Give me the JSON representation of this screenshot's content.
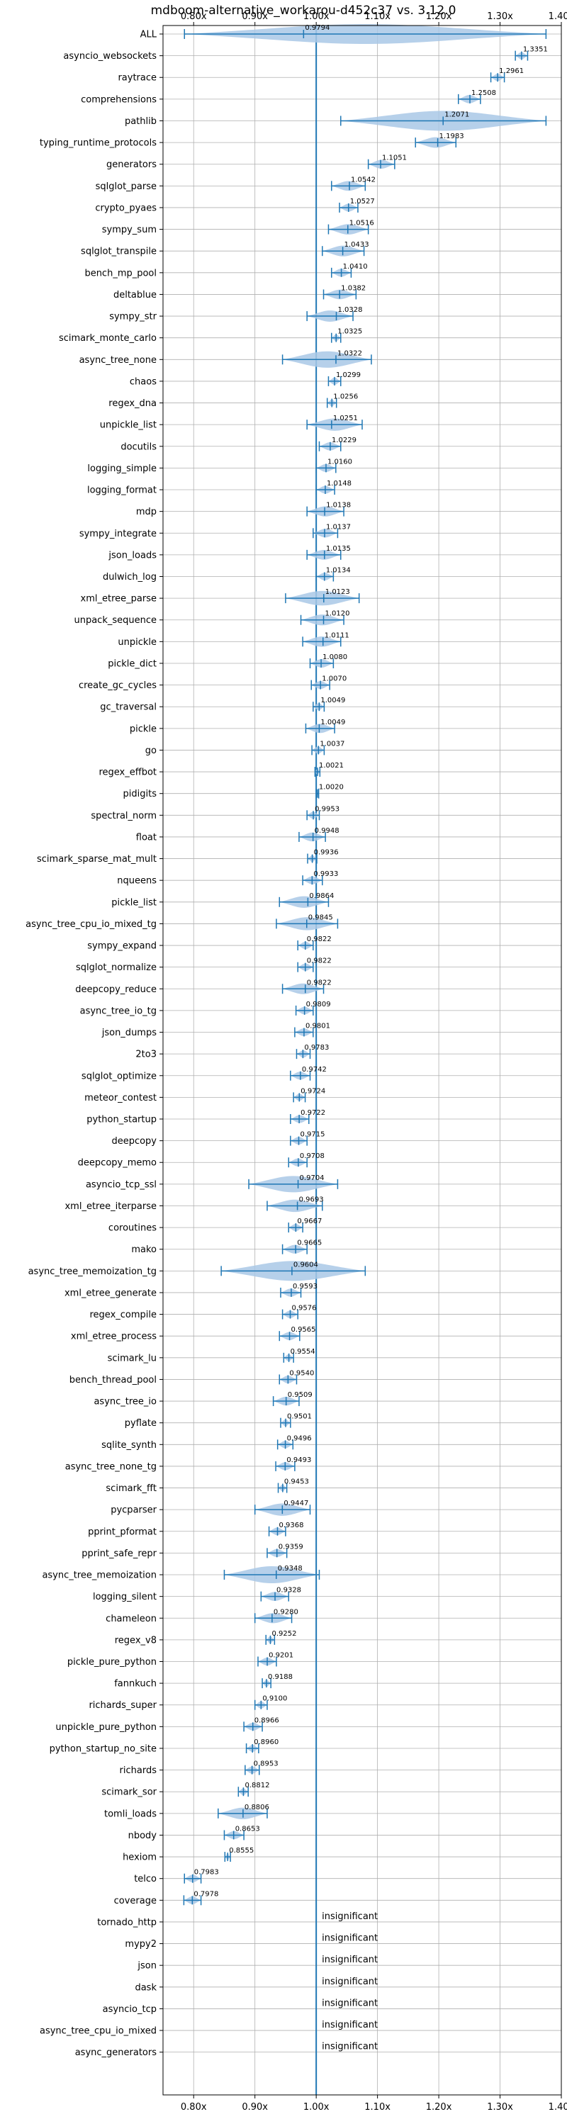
{
  "chart_data": {
    "type": "violin",
    "title": "mdboom-alternative_workarou-d452c37 vs. 3.12.0",
    "xlabel": "",
    "ylabel": "",
    "xlim": [
      0.75,
      1.4
    ],
    "xticks": [
      0.8,
      0.9,
      1.0,
      1.1,
      1.2,
      1.3,
      1.4
    ],
    "xtick_labels": [
      "0.80x",
      "0.90x",
      "1.00x",
      "1.10x",
      "1.20x",
      "1.30x",
      "1.40x"
    ],
    "grid": true,
    "reference_line": 1.0,
    "colors": {
      "violin": "#a9c8e6",
      "line": "#1f77b4",
      "grid": "#b0b0b0"
    },
    "benchmarks": [
      {
        "name": "ALL",
        "value": 0.9794,
        "label": "0.9794",
        "min": 0.785,
        "max": 1.375
      },
      {
        "name": "asyncio_websockets",
        "value": 1.3351,
        "label": "1.3351",
        "min": 1.325,
        "max": 1.345
      },
      {
        "name": "raytrace",
        "value": 1.2961,
        "label": "1.2961",
        "min": 1.285,
        "max": 1.307
      },
      {
        "name": "comprehensions",
        "value": 1.2508,
        "label": "1.2508",
        "min": 1.232,
        "max": 1.268
      },
      {
        "name": "pathlib",
        "value": 1.2071,
        "label": "1.2071",
        "min": 1.04,
        "max": 1.375
      },
      {
        "name": "typing_runtime_protocols",
        "value": 1.1983,
        "label": "1.1983",
        "min": 1.162,
        "max": 1.228
      },
      {
        "name": "generators",
        "value": 1.1051,
        "label": "1.1051",
        "min": 1.085,
        "max": 1.128
      },
      {
        "name": "sqlglot_parse",
        "value": 1.0542,
        "label": "1.0542",
        "min": 1.025,
        "max": 1.08
      },
      {
        "name": "crypto_pyaes",
        "value": 1.0527,
        "label": "1.0527",
        "min": 1.038,
        "max": 1.068
      },
      {
        "name": "sympy_sum",
        "value": 1.0516,
        "label": "1.0516",
        "min": 1.02,
        "max": 1.085
      },
      {
        "name": "sqlglot_transpile",
        "value": 1.0433,
        "label": "1.0433",
        "min": 1.01,
        "max": 1.078
      },
      {
        "name": "bench_mp_pool",
        "value": 1.041,
        "label": "1.0410",
        "min": 1.025,
        "max": 1.057
      },
      {
        "name": "deltablue",
        "value": 1.0382,
        "label": "1.0382",
        "min": 1.012,
        "max": 1.065
      },
      {
        "name": "sympy_str",
        "value": 1.0328,
        "label": "1.0328",
        "min": 0.985,
        "max": 1.06
      },
      {
        "name": "scimark_monte_carlo",
        "value": 1.0325,
        "label": "1.0325",
        "min": 1.025,
        "max": 1.04
      },
      {
        "name": "async_tree_none",
        "value": 1.0322,
        "label": "1.0322",
        "min": 0.945,
        "max": 1.09
      },
      {
        "name": "chaos",
        "value": 1.0299,
        "label": "1.0299",
        "min": 1.02,
        "max": 1.04
      },
      {
        "name": "regex_dna",
        "value": 1.0256,
        "label": "1.0256",
        "min": 1.018,
        "max": 1.033
      },
      {
        "name": "unpickle_list",
        "value": 1.0251,
        "label": "1.0251",
        "min": 0.985,
        "max": 1.075
      },
      {
        "name": "docutils",
        "value": 1.0229,
        "label": "1.0229",
        "min": 1.005,
        "max": 1.04
      },
      {
        "name": "logging_simple",
        "value": 1.016,
        "label": "1.0160",
        "min": 1.0,
        "max": 1.032
      },
      {
        "name": "logging_format",
        "value": 1.0148,
        "label": "1.0148",
        "min": 1.0,
        "max": 1.03
      },
      {
        "name": "mdp",
        "value": 1.0138,
        "label": "1.0138",
        "min": 0.985,
        "max": 1.045
      },
      {
        "name": "sympy_integrate",
        "value": 1.0137,
        "label": "1.0137",
        "min": 0.995,
        "max": 1.035
      },
      {
        "name": "json_loads",
        "value": 1.0135,
        "label": "1.0135",
        "min": 0.985,
        "max": 1.04
      },
      {
        "name": "dulwich_log",
        "value": 1.0134,
        "label": "1.0134",
        "min": 1.0,
        "max": 1.028
      },
      {
        "name": "xml_etree_parse",
        "value": 1.0123,
        "label": "1.0123",
        "min": 0.95,
        "max": 1.07
      },
      {
        "name": "unpack_sequence",
        "value": 1.012,
        "label": "1.0120",
        "min": 0.975,
        "max": 1.045
      },
      {
        "name": "unpickle",
        "value": 1.0111,
        "label": "1.0111",
        "min": 0.978,
        "max": 1.04
      },
      {
        "name": "pickle_dict",
        "value": 1.008,
        "label": "1.0080",
        "min": 0.99,
        "max": 1.028
      },
      {
        "name": "create_gc_cycles",
        "value": 1.007,
        "label": "1.0070",
        "min": 0.992,
        "max": 1.022
      },
      {
        "name": "gc_traversal",
        "value": 1.0049,
        "label": "1.0049",
        "min": 0.995,
        "max": 1.013
      },
      {
        "name": "pickle",
        "value": 1.0049,
        "label": "1.0049",
        "min": 0.983,
        "max": 1.03
      },
      {
        "name": "go",
        "value": 1.0037,
        "label": "1.0037",
        "min": 0.993,
        "max": 1.013
      },
      {
        "name": "regex_effbot",
        "value": 1.0021,
        "label": "1.0021",
        "min": 0.998,
        "max": 1.006
      },
      {
        "name": "pidigits",
        "value": 1.002,
        "label": "1.0020",
        "min": 1.0,
        "max": 1.004
      },
      {
        "name": "spectral_norm",
        "value": 0.9953,
        "label": "0.9953",
        "min": 0.985,
        "max": 1.005
      },
      {
        "name": "float",
        "value": 0.9948,
        "label": "0.9948",
        "min": 0.972,
        "max": 1.015
      },
      {
        "name": "scimark_sparse_mat_mult",
        "value": 0.9936,
        "label": "0.9936",
        "min": 0.986,
        "max": 1.001
      },
      {
        "name": "nqueens",
        "value": 0.9933,
        "label": "0.9933",
        "min": 0.978,
        "max": 1.01
      },
      {
        "name": "pickle_list",
        "value": 0.9864,
        "label": "0.9864",
        "min": 0.94,
        "max": 1.02
      },
      {
        "name": "async_tree_cpu_io_mixed_tg",
        "value": 0.9845,
        "label": "0.9845",
        "min": 0.935,
        "max": 1.035
      },
      {
        "name": "sympy_expand",
        "value": 0.9822,
        "label": "0.9822",
        "min": 0.97,
        "max": 0.995
      },
      {
        "name": "sqlglot_normalize",
        "value": 0.9822,
        "label": "0.9822",
        "min": 0.97,
        "max": 0.995
      },
      {
        "name": "deepcopy_reduce",
        "value": 0.9822,
        "label": "0.9822",
        "min": 0.945,
        "max": 1.012
      },
      {
        "name": "async_tree_io_tg",
        "value": 0.9809,
        "label": "0.9809",
        "min": 0.967,
        "max": 0.995
      },
      {
        "name": "json_dumps",
        "value": 0.9801,
        "label": "0.9801",
        "min": 0.965,
        "max": 0.995
      },
      {
        "name": "2to3",
        "value": 0.9783,
        "label": "0.9783",
        "min": 0.968,
        "max": 0.99
      },
      {
        "name": "sqlglot_optimize",
        "value": 0.9742,
        "label": "0.9742",
        "min": 0.958,
        "max": 0.99
      },
      {
        "name": "meteor_contest",
        "value": 0.9724,
        "label": "0.9724",
        "min": 0.963,
        "max": 0.982
      },
      {
        "name": "python_startup",
        "value": 0.9722,
        "label": "0.9722",
        "min": 0.958,
        "max": 0.988
      },
      {
        "name": "deepcopy",
        "value": 0.9715,
        "label": "0.9715",
        "min": 0.958,
        "max": 0.985
      },
      {
        "name": "deepcopy_memo",
        "value": 0.9708,
        "label": "0.9708",
        "min": 0.955,
        "max": 0.985
      },
      {
        "name": "asyncio_tcp_ssl",
        "value": 0.9704,
        "label": "0.9704",
        "min": 0.89,
        "max": 1.035
      },
      {
        "name": "xml_etree_iterparse",
        "value": 0.9693,
        "label": "0.9693",
        "min": 0.92,
        "max": 1.01
      },
      {
        "name": "coroutines",
        "value": 0.9667,
        "label": "0.9667",
        "min": 0.955,
        "max": 0.978
      },
      {
        "name": "mako",
        "value": 0.9665,
        "label": "0.9665",
        "min": 0.945,
        "max": 0.985
      },
      {
        "name": "async_tree_memoization_tg",
        "value": 0.9604,
        "label": "0.9604",
        "min": 0.845,
        "max": 1.08
      },
      {
        "name": "xml_etree_generate",
        "value": 0.9593,
        "label": "0.9593",
        "min": 0.942,
        "max": 0.975
      },
      {
        "name": "regex_compile",
        "value": 0.9576,
        "label": "0.9576",
        "min": 0.945,
        "max": 0.97
      },
      {
        "name": "xml_etree_process",
        "value": 0.9565,
        "label": "0.9565",
        "min": 0.94,
        "max": 0.973
      },
      {
        "name": "scimark_lu",
        "value": 0.9554,
        "label": "0.9554",
        "min": 0.947,
        "max": 0.963
      },
      {
        "name": "bench_thread_pool",
        "value": 0.954,
        "label": "0.9540",
        "min": 0.94,
        "max": 0.968
      },
      {
        "name": "async_tree_io",
        "value": 0.9509,
        "label": "0.9509",
        "min": 0.93,
        "max": 0.972
      },
      {
        "name": "pyflate",
        "value": 0.9501,
        "label": "0.9501",
        "min": 0.942,
        "max": 0.958
      },
      {
        "name": "sqlite_synth",
        "value": 0.9496,
        "label": "0.9496",
        "min": 0.937,
        "max": 0.962
      },
      {
        "name": "async_tree_none_tg",
        "value": 0.9493,
        "label": "0.9493",
        "min": 0.934,
        "max": 0.965
      },
      {
        "name": "scimark_fft",
        "value": 0.9453,
        "label": "0.9453",
        "min": 0.938,
        "max": 0.952
      },
      {
        "name": "pycparser",
        "value": 0.9447,
        "label": "0.9447",
        "min": 0.9,
        "max": 0.99
      },
      {
        "name": "pprint_pformat",
        "value": 0.9368,
        "label": "0.9368",
        "min": 0.923,
        "max": 0.95
      },
      {
        "name": "pprint_safe_repr",
        "value": 0.9359,
        "label": "0.9359",
        "min": 0.92,
        "max": 0.952
      },
      {
        "name": "async_tree_memoization",
        "value": 0.9348,
        "label": "0.9348",
        "min": 0.85,
        "max": 1.005
      },
      {
        "name": "logging_silent",
        "value": 0.9328,
        "label": "0.9328",
        "min": 0.91,
        "max": 0.955
      },
      {
        "name": "chameleon",
        "value": 0.928,
        "label": "0.9280",
        "min": 0.9,
        "max": 0.96
      },
      {
        "name": "regex_v8",
        "value": 0.9252,
        "label": "0.9252",
        "min": 0.918,
        "max": 0.932
      },
      {
        "name": "pickle_pure_python",
        "value": 0.9201,
        "label": "0.9201",
        "min": 0.905,
        "max": 0.935
      },
      {
        "name": "fannkuch",
        "value": 0.9188,
        "label": "0.9188",
        "min": 0.912,
        "max": 0.926
      },
      {
        "name": "richards_super",
        "value": 0.91,
        "label": "0.9100",
        "min": 0.9,
        "max": 0.92
      },
      {
        "name": "unpickle_pure_python",
        "value": 0.8966,
        "label": "0.8966",
        "min": 0.882,
        "max": 0.912
      },
      {
        "name": "python_startup_no_site",
        "value": 0.896,
        "label": "0.8960",
        "min": 0.886,
        "max": 0.906
      },
      {
        "name": "richards",
        "value": 0.8953,
        "label": "0.8953",
        "min": 0.884,
        "max": 0.907
      },
      {
        "name": "scimark_sor",
        "value": 0.8812,
        "label": "0.8812",
        "min": 0.873,
        "max": 0.889
      },
      {
        "name": "tomli_loads",
        "value": 0.8806,
        "label": "0.8806",
        "min": 0.84,
        "max": 0.92
      },
      {
        "name": "nbody",
        "value": 0.8653,
        "label": "0.8653",
        "min": 0.85,
        "max": 0.882
      },
      {
        "name": "hexiom",
        "value": 0.8555,
        "label": "0.8555",
        "min": 0.851,
        "max": 0.86
      },
      {
        "name": "telco",
        "value": 0.7983,
        "label": "0.7983",
        "min": 0.785,
        "max": 0.812
      },
      {
        "name": "coverage",
        "value": 0.7978,
        "label": "0.7978",
        "min": 0.784,
        "max": 0.812
      },
      {
        "name": "tornado_http",
        "insignificant": true,
        "label": "insignificant"
      },
      {
        "name": "mypy2",
        "insignificant": true,
        "label": "insignificant"
      },
      {
        "name": "json",
        "insignificant": true,
        "label": "insignificant"
      },
      {
        "name": "dask",
        "insignificant": true,
        "label": "insignificant"
      },
      {
        "name": "asyncio_tcp",
        "insignificant": true,
        "label": "insignificant"
      },
      {
        "name": "async_tree_cpu_io_mixed",
        "insignificant": true,
        "label": "insignificant"
      },
      {
        "name": "async_generators",
        "insignificant": true,
        "label": "insignificant"
      }
    ]
  }
}
